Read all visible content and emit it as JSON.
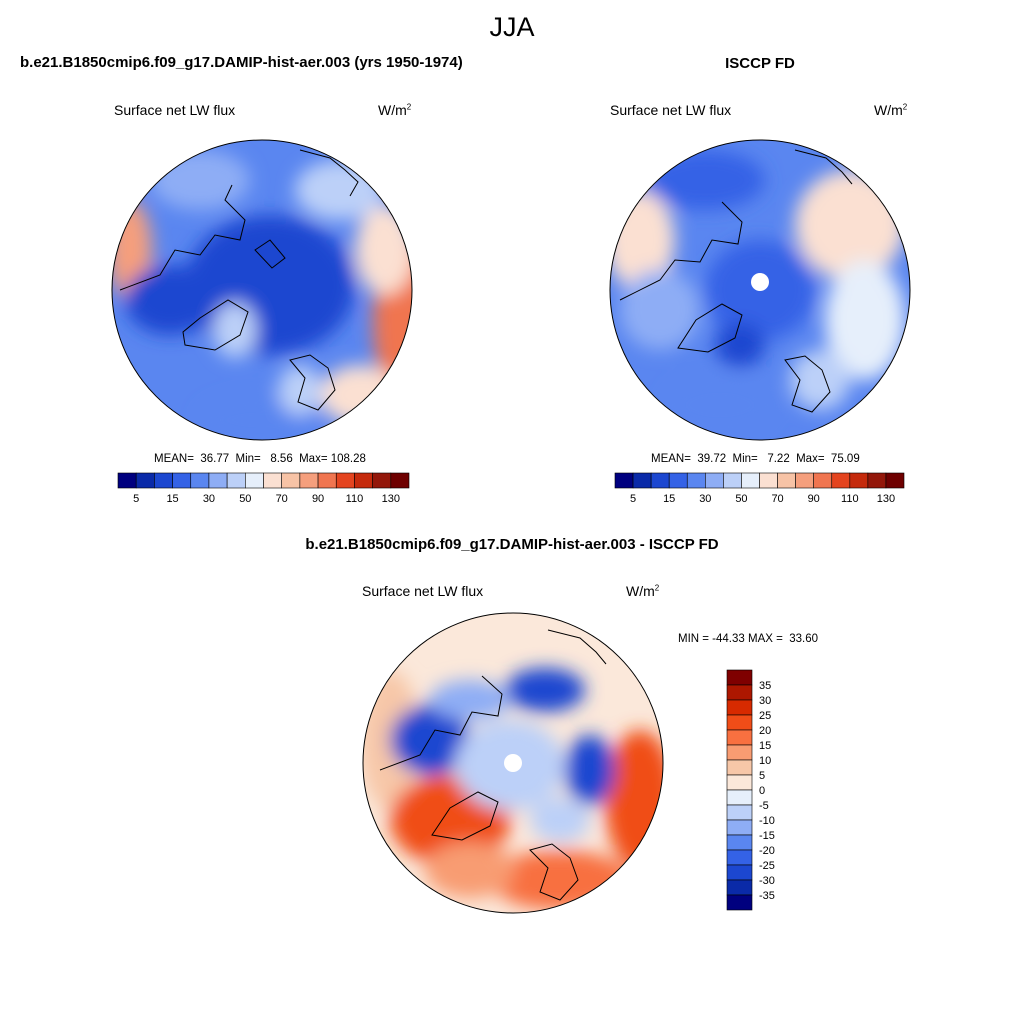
{
  "season": "JJA",
  "panels": [
    {
      "title": "b.e21.B1850cmip6.f09_g17.DAMIP-hist-aer.003 (yrs 1950-1974)",
      "variable": "Surface net LW flux",
      "units_base": "W/m",
      "units_exp": "2",
      "stats": "MEAN=  36.77  Min=   8.56  Max= 108.28",
      "colorbar_labels": [
        "5",
        "15",
        "30",
        "50",
        "70",
        "90",
        "110",
        "130"
      ]
    },
    {
      "title": "ISCCP FD",
      "variable": "Surface net LW flux",
      "units_base": "W/m",
      "units_exp": "2",
      "stats": "MEAN=  39.72  Min=   7.22  Max=  75.09",
      "colorbar_labels": [
        "5",
        "15",
        "30",
        "50",
        "70",
        "90",
        "110",
        "130"
      ]
    },
    {
      "title": "b.e21.B1850cmip6.f09_g17.DAMIP-hist-aer.003 - ISCCP FD",
      "variable": "Surface net LW flux",
      "units_base": "W/m",
      "units_exp": "2",
      "stats": "MIN = -44.33 MAX =  33.60",
      "colorbar_labels": [
        "35",
        "30",
        "25",
        "20",
        "15",
        "10",
        "5",
        "0",
        "-5",
        "-10",
        "-15",
        "-20",
        "-25",
        "-30",
        "-35"
      ]
    }
  ],
  "colors": {
    "abs_scale": [
      "#00007f",
      "#0a2aa8",
      "#1c47d0",
      "#3462e6",
      "#5a86f0",
      "#8eadf5",
      "#bcd0f8",
      "#e6effb",
      "#fbe0d2",
      "#f7c3a6",
      "#f59f7d",
      "#f07550",
      "#e4441f",
      "#c52a0c",
      "#93170a",
      "#6e0000"
    ],
    "diff_scale": [
      "#7f0000",
      "#ad1700",
      "#d72a00",
      "#f04d18",
      "#f87040",
      "#f89c72",
      "#f7c7a8",
      "#fbe8da",
      "#e6effb",
      "#bcd0f8",
      "#8eadf5",
      "#5a86f0",
      "#3462e6",
      "#1c47d0",
      "#0a2aa8",
      "#00007f"
    ],
    "pole_mask": "#ffffff",
    "coastline": "#000000"
  }
}
